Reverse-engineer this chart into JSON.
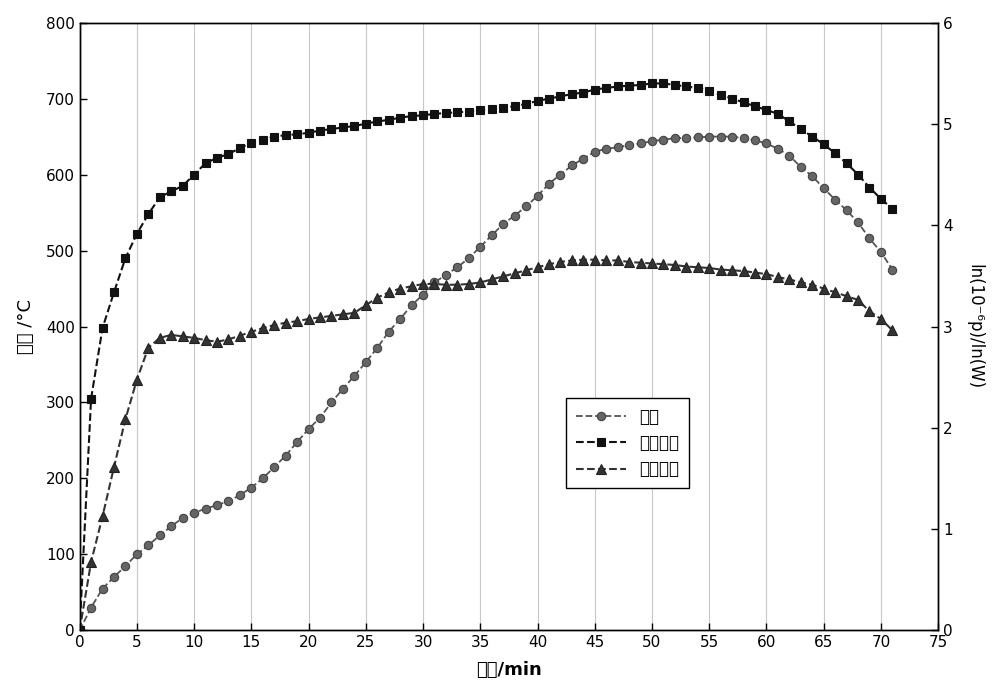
{
  "time": [
    0,
    1,
    2,
    3,
    4,
    5,
    6,
    7,
    8,
    9,
    10,
    11,
    12,
    13,
    14,
    15,
    16,
    17,
    18,
    19,
    20,
    21,
    22,
    23,
    24,
    25,
    26,
    27,
    28,
    29,
    30,
    31,
    32,
    33,
    34,
    35,
    36,
    37,
    38,
    39,
    40,
    41,
    42,
    43,
    44,
    45,
    46,
    47,
    48,
    49,
    50,
    51,
    52,
    53,
    54,
    55,
    56,
    57,
    58,
    59,
    60,
    61,
    62,
    63,
    64,
    65,
    66,
    67,
    68,
    69,
    70,
    71
  ],
  "temp": [
    0,
    30,
    55,
    70,
    85,
    100,
    112,
    125,
    137,
    148,
    155,
    160,
    165,
    170,
    178,
    188,
    200,
    215,
    230,
    248,
    265,
    280,
    300,
    318,
    335,
    353,
    372,
    393,
    410,
    428,
    442,
    458,
    468,
    478,
    490,
    505,
    520,
    535,
    546,
    558,
    572,
    588,
    600,
    612,
    621,
    630,
    634,
    636,
    639,
    641,
    644,
    646,
    648,
    648,
    649,
    650,
    650,
    650,
    648,
    645,
    641,
    634,
    625,
    610,
    598,
    582,
    567,
    553,
    537,
    516,
    498,
    475
  ],
  "incident": [
    0,
    305,
    398,
    445,
    490,
    522,
    548,
    570,
    578,
    585,
    600,
    615,
    622,
    627,
    635,
    642,
    646,
    650,
    652,
    653,
    655,
    658,
    660,
    662,
    664,
    667,
    670,
    672,
    675,
    677,
    678,
    680,
    681,
    682,
    683,
    685,
    686,
    688,
    690,
    693,
    697,
    700,
    703,
    706,
    708,
    712,
    714,
    716,
    717,
    718,
    720,
    720,
    718,
    716,
    714,
    710,
    705,
    700,
    695,
    690,
    685,
    680,
    670,
    660,
    650,
    640,
    628,
    615,
    600,
    583,
    568,
    555
  ],
  "reflected": [
    0,
    90,
    150,
    215,
    278,
    330,
    372,
    385,
    389,
    387,
    385,
    382,
    380,
    383,
    388,
    393,
    398,
    402,
    405,
    407,
    410,
    412,
    414,
    416,
    418,
    428,
    438,
    445,
    450,
    453,
    456,
    456,
    455,
    455,
    456,
    458,
    462,
    466,
    470,
    474,
    478,
    482,
    485,
    487,
    488,
    488,
    487,
    487,
    485,
    484,
    483,
    482,
    481,
    479,
    478,
    477,
    475,
    474,
    473,
    471,
    469,
    465,
    462,
    458,
    455,
    450,
    445,
    440,
    435,
    420,
    410,
    395
  ],
  "ylim_left": [
    0,
    800
  ],
  "ylim_right": [
    0,
    6
  ],
  "xlim": [
    0,
    75
  ],
  "xlabel": "时间/min",
  "ylabel_left": "温度 /°C",
  "ylabel_right": "ln(10⁻⁶p)/ln(W)",
  "legend_temp": "温度",
  "legend_incident": "入射功率",
  "legend_reflected": "反射功率",
  "bg_color": "#ffffff",
  "xticks": [
    0,
    5,
    10,
    15,
    20,
    25,
    30,
    35,
    40,
    45,
    50,
    55,
    60,
    65,
    70,
    75
  ],
  "yticks_left": [
    0,
    100,
    200,
    300,
    400,
    500,
    600,
    700,
    800
  ],
  "yticks_right": [
    0,
    1,
    2,
    3,
    4,
    5,
    6
  ],
  "vgrid_color": "#c8c8c8",
  "scale_factor": 133.333
}
